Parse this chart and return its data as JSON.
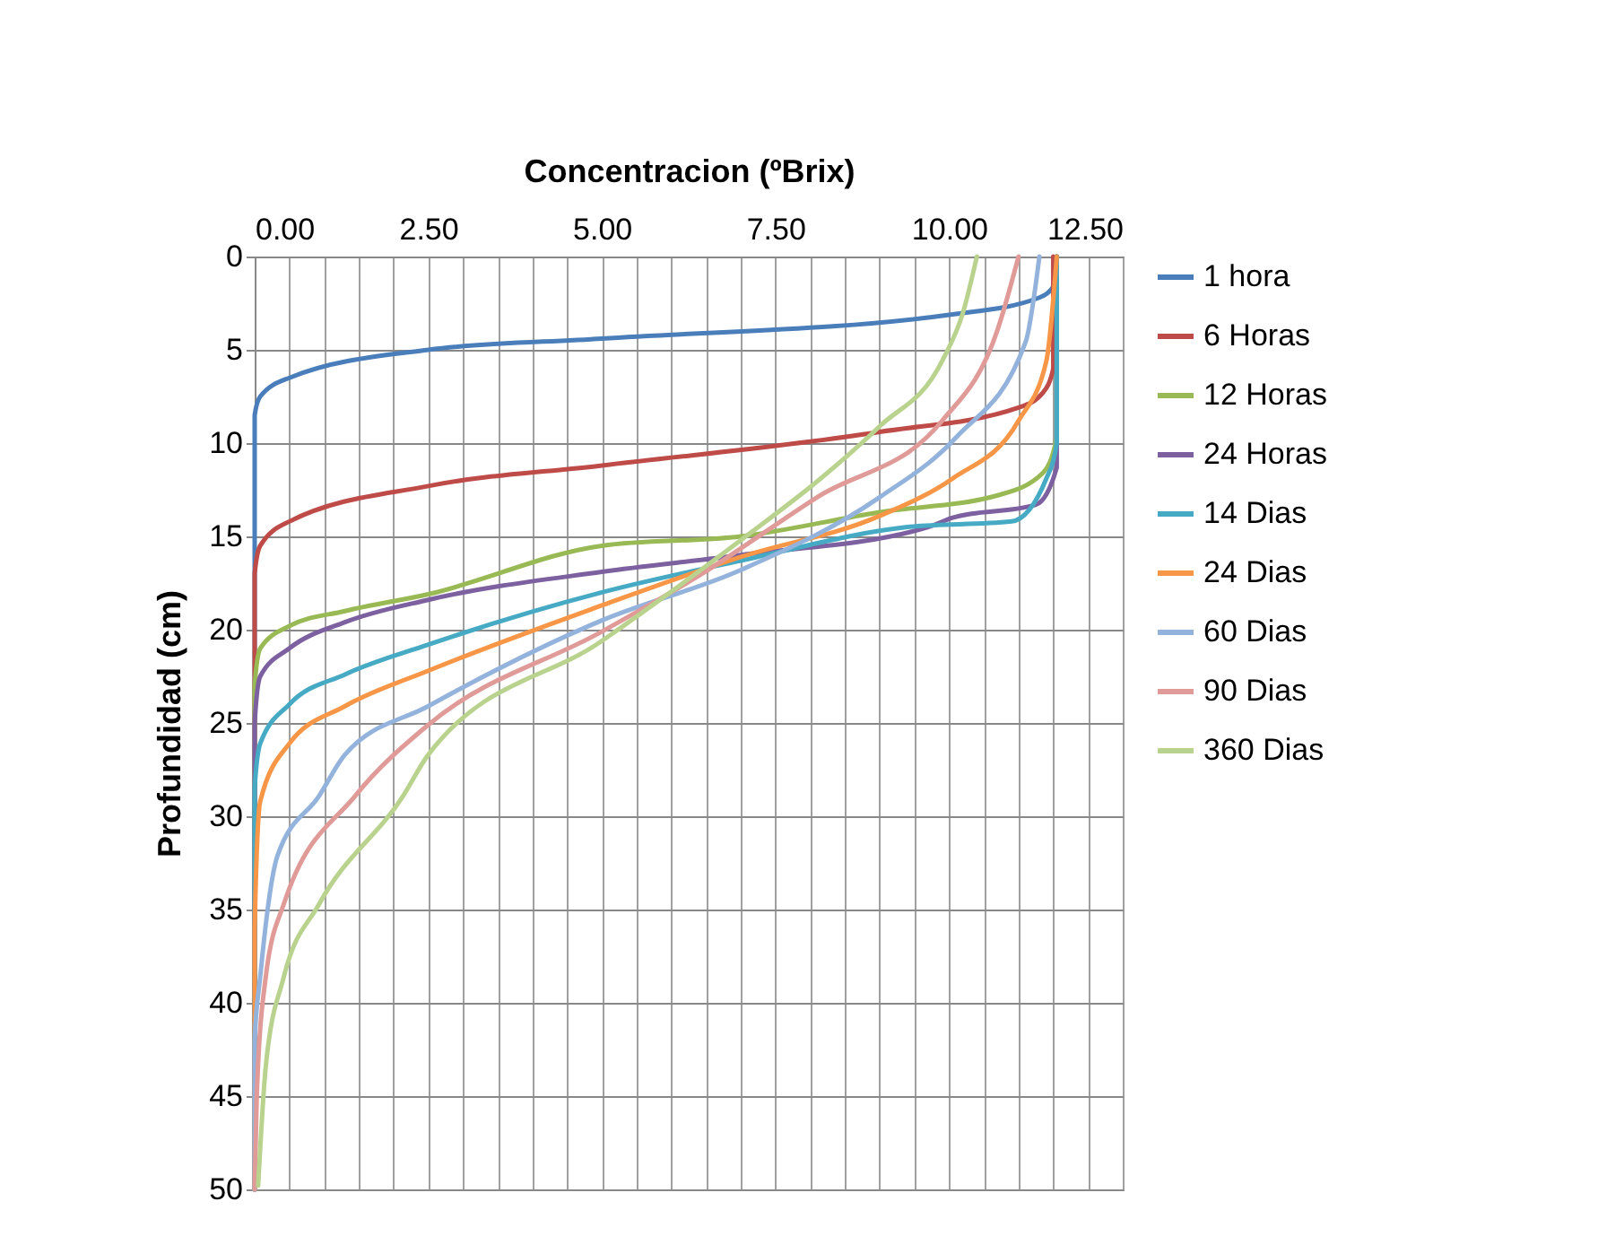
{
  "chart_data": {
    "type": "line",
    "xlabel": "Concentracion (ºBrix)",
    "ylabel": "Profundidad (cm)",
    "xlim": [
      0,
      12.5
    ],
    "ylim": [
      50,
      0
    ],
    "xticks": [
      {
        "value": 0,
        "label": "0.00"
      },
      {
        "value": 0.5,
        "label": null
      },
      {
        "value": 1,
        "label": null
      },
      {
        "value": 1.5,
        "label": null
      },
      {
        "value": 2,
        "label": null
      },
      {
        "value": 2.5,
        "label": "2.50"
      },
      {
        "value": 3,
        "label": null
      },
      {
        "value": 3.5,
        "label": null
      },
      {
        "value": 4,
        "label": null
      },
      {
        "value": 4.5,
        "label": null
      },
      {
        "value": 5,
        "label": "5.00"
      },
      {
        "value": 5.5,
        "label": null
      },
      {
        "value": 6,
        "label": null
      },
      {
        "value": 6.5,
        "label": null
      },
      {
        "value": 7,
        "label": null
      },
      {
        "value": 7.5,
        "label": "7.50"
      },
      {
        "value": 8,
        "label": null
      },
      {
        "value": 8.5,
        "label": null
      },
      {
        "value": 9,
        "label": null
      },
      {
        "value": 9.5,
        "label": null
      },
      {
        "value": 10,
        "label": "10.00"
      },
      {
        "value": 10.5,
        "label": null
      },
      {
        "value": 11,
        "label": null
      },
      {
        "value": 11.5,
        "label": null
      },
      {
        "value": 12,
        "label": null
      },
      {
        "value": 12.5,
        "label": "12.50"
      }
    ],
    "yticks": [
      0,
      5,
      10,
      15,
      20,
      25,
      30,
      35,
      40,
      45,
      50
    ],
    "grid": true,
    "legend": "right",
    "marker": "none",
    "line_style": "solid",
    "series": [
      {
        "name": "1 hora",
        "color": "#4a7ebb",
        "x": [
          11.55,
          11.52,
          11.3,
          10.05,
          5.0,
          2.5,
          0.5,
          0.08,
          0,
          0
        ],
        "values": [
          0,
          1.5,
          2.2,
          3.1,
          4.4,
          5.0,
          6.5,
          7.5,
          8.5,
          50
        ]
      },
      {
        "name": "6 Horas",
        "color": "#be4b48",
        "x": [
          11.5,
          11.5,
          11.35,
          11.0,
          9.0,
          5.0,
          2.5,
          0.5,
          0.08,
          0,
          0
        ],
        "values": [
          0,
          6,
          7.3,
          8.1,
          9.4,
          11.2,
          12.3,
          14.2,
          15.5,
          17,
          50
        ]
      },
      {
        "name": "12 Horas",
        "color": "#98b954",
        "x": [
          11.55,
          11.55,
          11.35,
          10.7,
          9.0,
          7.0,
          5.0,
          2.5,
          1.3,
          0.5,
          0.08,
          0,
          0
        ],
        "values": [
          0,
          9.7,
          11.6,
          12.8,
          13.7,
          15.0,
          15.5,
          18.1,
          19.0,
          19.8,
          21.0,
          23,
          50
        ]
      },
      {
        "name": "24 Horas",
        "color": "#7d60a0",
        "x": [
          11.55,
          11.55,
          11.25,
          10.05,
          9.7,
          7.0,
          5.0,
          2.5,
          1.3,
          0.5,
          0.08,
          0,
          0
        ],
        "values": [
          0,
          11.3,
          13.3,
          14.0,
          14.5,
          16.0,
          16.9,
          18.4,
          19.6,
          21.0,
          22.5,
          25,
          50
        ]
      },
      {
        "name": "14 Dias",
        "color": "#46aac5",
        "x": [
          11.55,
          11.55,
          11.4,
          10.9,
          9.4,
          7.0,
          5.0,
          2.5,
          1.3,
          0.5,
          0.08,
          0,
          0
        ],
        "values": [
          0,
          10,
          11.9,
          14.2,
          14.5,
          16.3,
          18.0,
          20.8,
          22.4,
          24.0,
          26.1,
          28.5,
          50
        ]
      },
      {
        "name": "24 Dias",
        "color": "#f79646",
        "x": [
          11.55,
          11.4,
          11.0,
          10.05,
          9.0,
          7.0,
          5.0,
          2.5,
          1.3,
          0.5,
          0.08,
          0,
          0
        ],
        "values": [
          0,
          5.6,
          8.8,
          11.9,
          13.9,
          16.1,
          18.7,
          22.2,
          24.1,
          26.1,
          29.2,
          36,
          50
        ]
      },
      {
        "name": "60 Dias",
        "color": "#93b3dc",
        "x": [
          11.3,
          11.1,
          10.1,
          9.0,
          7.0,
          5.0,
          2.5,
          1.3,
          0.93,
          0.33,
          0.08,
          0,
          0
        ],
        "values": [
          0,
          4.6,
          9.7,
          12.9,
          16.8,
          19.5,
          24.1,
          26.7,
          28.9,
          32.1,
          38.6,
          42,
          50
        ]
      },
      {
        "name": "90 Dias",
        "color": "#e09a98",
        "x": [
          11.0,
          10.7,
          9.9,
          8.1,
          6.4,
          5.0,
          2.5,
          1.45,
          0.42,
          0.16,
          0.03,
          0
        ],
        "values": [
          0,
          3.9,
          8.8,
          12.9,
          17.1,
          20.1,
          25.1,
          28.9,
          34.7,
          38.6,
          45,
          50
        ]
      },
      {
        "name": "360 Dias",
        "color": "#b9d38e",
        "x": [
          10.4,
          10.2,
          9.9,
          9.0,
          8.15,
          7.0,
          5.0,
          2.5,
          2.14,
          0.93,
          0.42,
          0.16,
          0.05
        ],
        "values": [
          0,
          3.0,
          5.6,
          9.1,
          11.9,
          15.2,
          20.6,
          26.7,
          28.9,
          34.7,
          38.6,
          43.4,
          49.8
        ]
      }
    ]
  }
}
